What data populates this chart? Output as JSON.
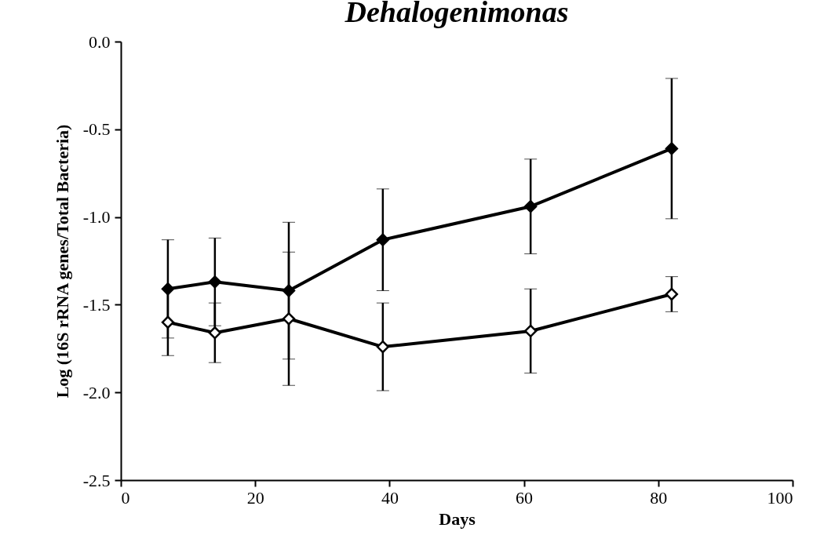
{
  "chart_data": {
    "type": "line",
    "title": "Dehalogenimonas",
    "xlabel": "Days",
    "ylabel": "Log (16S rRNA genes/Total Bacteria)",
    "x": [
      7,
      14,
      25,
      39,
      61,
      82
    ],
    "series": [
      {
        "color": "#000000",
        "values": [
          -1.41,
          -1.37,
          -1.42,
          -1.13,
          -0.94,
          -0.61
        ],
        "errors": [
          0.28,
          0.25,
          0.39,
          0.29,
          0.27,
          0.4
        ]
      },
      {
        "color": "#000000",
        "values": [
          -1.6,
          -1.66,
          -1.58,
          -1.74,
          -1.65,
          -1.44
        ],
        "errors": [
          0.19,
          0.17,
          0.38,
          0.25,
          0.24,
          0.1
        ]
      }
    ],
    "xlim": [
      0,
      100
    ],
    "xticks": [
      0,
      20,
      40,
      60,
      80,
      100
    ],
    "ylim": [
      -2.5,
      0
    ],
    "yticks": [
      {
        "value": -2.5,
        "label": "-2.5"
      },
      {
        "value": -2,
        "label": "-2.0"
      },
      {
        "value": -1.5,
        "label": "-1.5"
      },
      {
        "value": -1,
        "label": "-1.0"
      },
      {
        "value": -0.5,
        "label": "-0.5"
      },
      {
        "value": 0,
        "label": "0.0"
      }
    ],
    "grid": false,
    "legend": false,
    "marker": "diamond",
    "line_style": "solid"
  }
}
